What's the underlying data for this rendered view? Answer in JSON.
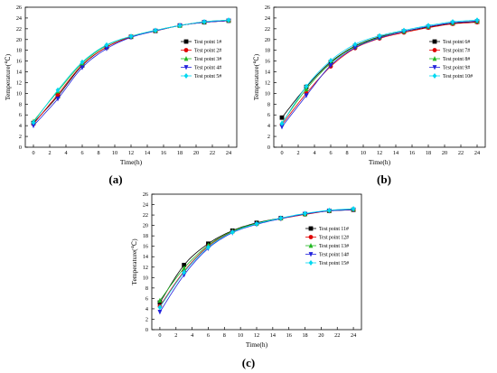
{
  "captions": [
    "(a)",
    "(b)",
    "(c)"
  ],
  "chart_data": [
    {
      "type": "line",
      "panel": "a",
      "xlabel": "Time(h)",
      "ylabel": "Temperature(℃)",
      "x": [
        0,
        3,
        6,
        9,
        12,
        15,
        18,
        21,
        24
      ],
      "xticks": [
        0,
        2,
        4,
        6,
        8,
        10,
        12,
        14,
        16,
        18,
        20,
        22,
        24
      ],
      "xlim": [
        -1,
        25
      ],
      "yticks": [
        0,
        2,
        4,
        6,
        8,
        10,
        12,
        14,
        16,
        18,
        20,
        22,
        24,
        26
      ],
      "ylim": [
        0,
        26
      ],
      "grid": false,
      "legend_position": "right",
      "series": [
        {
          "name": "Test point 1#",
          "marker": "square",
          "color": "#000000",
          "values": [
            4.5,
            9.5,
            15.2,
            18.6,
            20.5,
            21.6,
            22.6,
            23.2,
            23.5
          ]
        },
        {
          "name": "Test point 2#",
          "marker": "circle",
          "color": "#e00000",
          "values": [
            4.3,
            9.8,
            15.3,
            18.6,
            20.5,
            21.6,
            22.6,
            23.2,
            23.5
          ]
        },
        {
          "name": "Test point 3#",
          "marker": "triangle-up",
          "color": "#22b822",
          "values": [
            4.8,
            10.4,
            15.6,
            18.9,
            20.6,
            21.7,
            22.6,
            23.3,
            23.6
          ]
        },
        {
          "name": "Test point 4#",
          "marker": "triangle-down",
          "color": "#2222dd",
          "values": [
            4.0,
            9.0,
            14.8,
            18.3,
            20.4,
            21.6,
            22.6,
            23.2,
            23.5
          ]
        },
        {
          "name": "Test point 5#",
          "marker": "diamond",
          "color": "#00d8f0",
          "values": [
            4.6,
            10.6,
            15.8,
            19.0,
            20.6,
            21.7,
            22.6,
            23.3,
            23.6
          ]
        }
      ]
    },
    {
      "type": "line",
      "panel": "b",
      "xlabel": "Time(h)",
      "ylabel": "Temperature(℃)",
      "x": [
        0,
        3,
        6,
        9,
        12,
        15,
        18,
        21,
        24
      ],
      "xticks": [
        0,
        2,
        4,
        6,
        8,
        10,
        12,
        14,
        16,
        18,
        20,
        22,
        24
      ],
      "xlim": [
        -1,
        25
      ],
      "yticks": [
        0,
        2,
        4,
        6,
        8,
        10,
        12,
        14,
        16,
        18,
        20,
        22,
        24,
        26
      ],
      "ylim": [
        0,
        26
      ],
      "grid": false,
      "legend_position": "right",
      "series": [
        {
          "name": "Test point 6#",
          "marker": "square",
          "color": "#000000",
          "values": [
            5.5,
            11.2,
            15.8,
            18.8,
            20.5,
            21.5,
            22.3,
            23.0,
            23.3
          ]
        },
        {
          "name": "Test point 7#",
          "marker": "circle",
          "color": "#e00000",
          "values": [
            4.2,
            10.0,
            15.0,
            18.4,
            20.2,
            21.3,
            22.2,
            22.9,
            23.2
          ]
        },
        {
          "name": "Test point 8#",
          "marker": "triangle-up",
          "color": "#22b822",
          "values": [
            4.5,
            10.8,
            15.6,
            18.7,
            20.4,
            21.5,
            22.4,
            23.1,
            23.4
          ]
        },
        {
          "name": "Test point 9#",
          "marker": "triangle-down",
          "color": "#2222dd",
          "values": [
            3.8,
            9.6,
            15.2,
            18.5,
            20.3,
            21.5,
            22.4,
            23.1,
            23.4
          ]
        },
        {
          "name": "Test point 10#",
          "marker": "diamond",
          "color": "#00d8f0",
          "values": [
            4.4,
            11.3,
            16.1,
            19.1,
            20.7,
            21.7,
            22.6,
            23.3,
            23.6
          ]
        }
      ]
    },
    {
      "type": "line",
      "panel": "c",
      "xlabel": "Time(h)",
      "ylabel": "Temperature(℃)",
      "x": [
        0,
        3,
        6,
        9,
        12,
        15,
        18,
        21,
        24
      ],
      "xticks": [
        0,
        2,
        4,
        6,
        8,
        10,
        12,
        14,
        16,
        18,
        20,
        22,
        24
      ],
      "xlim": [
        -1,
        25
      ],
      "yticks": [
        0,
        2,
        4,
        6,
        8,
        10,
        12,
        14,
        16,
        18,
        20,
        22,
        24,
        26
      ],
      "ylim": [
        0,
        26
      ],
      "grid": false,
      "legend_position": "right",
      "series": [
        {
          "name": "Test point 11#",
          "marker": "square",
          "color": "#000000",
          "values": [
            5.2,
            12.4,
            16.5,
            19.0,
            20.5,
            21.4,
            22.2,
            22.8,
            23.0
          ]
        },
        {
          "name": "Test point 12#",
          "marker": "circle",
          "color": "#e00000",
          "values": [
            4.5,
            11.2,
            16.0,
            18.8,
            20.3,
            21.3,
            22.1,
            22.8,
            23.0
          ]
        },
        {
          "name": "Test point 13#",
          "marker": "triangle-up",
          "color": "#22b822",
          "values": [
            5.6,
            11.8,
            16.2,
            18.9,
            20.4,
            21.4,
            22.2,
            22.9,
            23.1
          ]
        },
        {
          "name": "Test point 14#",
          "marker": "triangle-down",
          "color": "#2222dd",
          "values": [
            3.4,
            10.5,
            15.6,
            18.6,
            20.2,
            21.3,
            22.2,
            22.8,
            23.0
          ]
        },
        {
          "name": "Test point 15#",
          "marker": "diamond",
          "color": "#00d8f0",
          "values": [
            4.3,
            11.0,
            15.8,
            18.7,
            20.3,
            21.4,
            22.3,
            22.9,
            23.2
          ]
        }
      ]
    }
  ]
}
